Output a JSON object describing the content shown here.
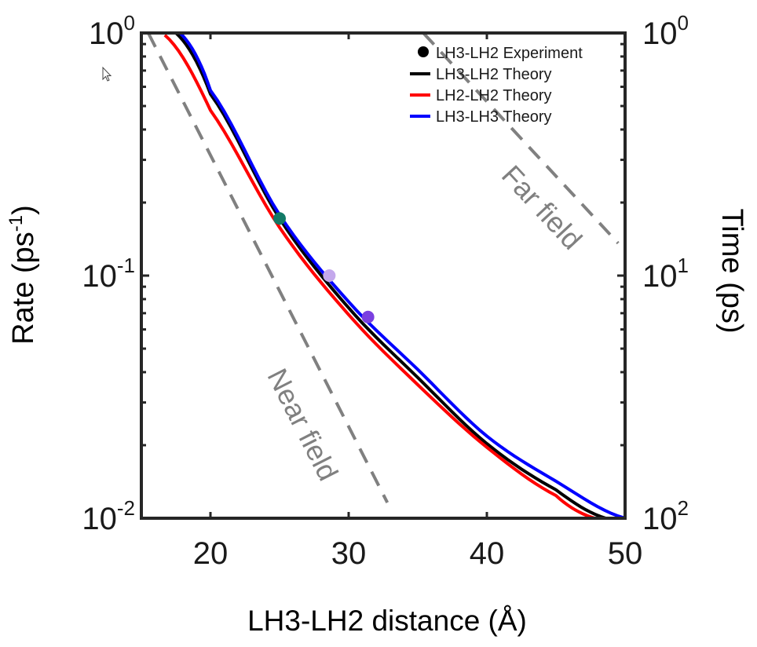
{
  "chart_data": {
    "type": "line",
    "xlabel": "LH3-LH2 distance (Å)",
    "ylabel": "Rate (ps",
    "ylabel_sup": "-1",
    "ylabel_end": ")",
    "y2label": "Time (ps)",
    "xlim": [
      15,
      50
    ],
    "ylim": [
      0.01,
      1
    ],
    "yscale": "log",
    "y2lim": [
      100,
      1
    ],
    "grid": false,
    "legend_position": "top-right",
    "x_ticks": [
      "20",
      "30",
      "40",
      "50"
    ],
    "x_tick_values": [
      20,
      30,
      40,
      50
    ],
    "y_ticks": [
      {
        "base": "10",
        "exp": "0",
        "value": 1
      },
      {
        "base": "10",
        "exp": "-1",
        "value": 0.1
      },
      {
        "base": "10",
        "exp": "-2",
        "value": 0.01
      }
    ],
    "y2_ticks": [
      {
        "base": "10",
        "exp": "0",
        "value": 1
      },
      {
        "base": "10",
        "exp": "1",
        "value": 0.1
      },
      {
        "base": "10",
        "exp": "2",
        "value": 0.01
      }
    ],
    "series": [
      {
        "name": "LH3-LH2 Theory",
        "color": "#000000",
        "x": [
          17.5,
          20,
          25,
          30,
          35,
          40,
          45,
          48.6
        ],
        "y": [
          1.0,
          0.56,
          0.172,
          0.0736,
          0.038,
          0.0203,
          0.0131,
          0.01
        ]
      },
      {
        "name": "LH2-LH2 Theory",
        "color": "#ff0000",
        "x": [
          16.7,
          20,
          25,
          30,
          35,
          40,
          45,
          47.8
        ],
        "y": [
          0.98,
          0.48,
          0.158,
          0.069,
          0.0355,
          0.0196,
          0.0124,
          0.01
        ]
      },
      {
        "name": "LH3-LH3 Theory",
        "color": "#0000ff",
        "x": [
          17.8,
          20,
          25,
          30,
          35,
          40,
          45,
          50
        ],
        "y": [
          1.0,
          0.58,
          0.178,
          0.078,
          0.041,
          0.0218,
          0.0142,
          0.01
        ]
      }
    ],
    "experiment": {
      "name": "LH3-LH2 Experiment",
      "legend_color": "#000000",
      "points": [
        {
          "x": 25.0,
          "y": 0.172,
          "color": "#127a66"
        },
        {
          "x": 28.6,
          "y": 0.1,
          "color": "#c4a8ec"
        },
        {
          "x": 31.4,
          "y": 0.0675,
          "color": "#7a3fe0"
        }
      ]
    },
    "guides": [
      {
        "label": "Near field",
        "color": "#808080",
        "x": [
          15.5,
          32.8
        ],
        "y": [
          1.0,
          0.0116
        ]
      },
      {
        "label": "Far field",
        "color": "#808080",
        "x": [
          35.4,
          49.5
        ],
        "y": [
          1.0,
          0.136
        ]
      }
    ]
  }
}
